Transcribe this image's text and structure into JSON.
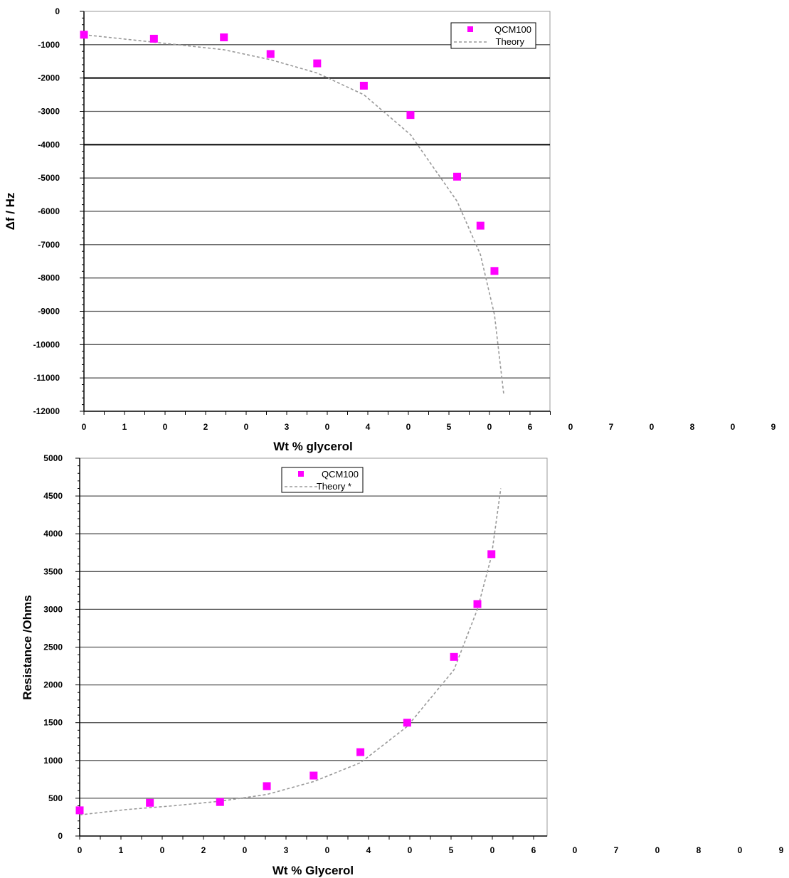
{
  "chart_data": [
    {
      "type": "scatter",
      "xlabel": "Wt % glycerol",
      "ylabel": "Δf / Hz",
      "ylim": [
        -12000,
        0
      ],
      "y_ticks": [
        0,
        -1000,
        -2000,
        -3000,
        -4000,
        -5000,
        -6000,
        -7000,
        -8000,
        -9000,
        -10000,
        -11000,
        -12000
      ],
      "y_tick_labels": [
        "0",
        "-1000",
        "-2000",
        "-3000",
        "-4000",
        "-5000",
        "-6000",
        "-7000",
        "-8000",
        "-9000",
        "-10000",
        "-11000",
        "-12000"
      ],
      "x_tick_labels": [
        "0",
        "1",
        "0",
        "2",
        "0",
        "3",
        "0",
        "4",
        "0",
        "5",
        "0",
        "6",
        "0",
        "7",
        "0",
        "8",
        "0",
        "9"
      ],
      "grid": true,
      "legend_position": "top-right",
      "series": [
        {
          "name": "QCM100",
          "kind": "marker",
          "color": "#ff00ff",
          "x": [
            0,
            15,
            30,
            40,
            50,
            60,
            70,
            80,
            85,
            88
          ],
          "y": [
            -700,
            -820,
            -780,
            -1280,
            -1560,
            -2230,
            -3110,
            -4960,
            -6430,
            -7790
          ]
        },
        {
          "name": "Theory",
          "kind": "dashed-line",
          "color": "#999999",
          "x": [
            0,
            10,
            20,
            30,
            40,
            50,
            60,
            70,
            80,
            85,
            88,
            90
          ],
          "y": [
            -700,
            -850,
            -1000,
            -1150,
            -1450,
            -1850,
            -2500,
            -3700,
            -5700,
            -7300,
            -9100,
            -11500
          ]
        }
      ]
    },
    {
      "type": "scatter",
      "xlabel": "Wt % Glycerol",
      "ylabel": "Resistance /Ohms",
      "ylim": [
        0,
        5000
      ],
      "y_ticks": [
        0,
        500,
        1000,
        1500,
        2000,
        2500,
        3000,
        3500,
        4000,
        4500,
        5000
      ],
      "y_tick_labels": [
        "0",
        "500",
        "1000",
        "1500",
        "2000",
        "2500",
        "3000",
        "3500",
        "4000",
        "4500",
        "5000"
      ],
      "x_tick_labels": [
        "0",
        "1",
        "0",
        "2",
        "0",
        "3",
        "0",
        "4",
        "0",
        "5",
        "0",
        "6",
        "0",
        "7",
        "0",
        "8",
        "0",
        "9"
      ],
      "grid": true,
      "legend_position": "top-center",
      "series": [
        {
          "name": "QCM100",
          "kind": "marker",
          "color": "#ff00ff",
          "x": [
            0,
            15,
            30,
            40,
            50,
            60,
            70,
            80,
            85,
            88
          ],
          "y": [
            340,
            440,
            450,
            660,
            800,
            1110,
            1500,
            2370,
            3070,
            3730
          ]
        },
        {
          "name": "Theory *",
          "kind": "dashed-line",
          "color": "#999999",
          "x": [
            0,
            10,
            20,
            30,
            40,
            50,
            60,
            70,
            80,
            85,
            88,
            90
          ],
          "y": [
            280,
            350,
            400,
            460,
            550,
            720,
            970,
            1450,
            2200,
            3000,
            3700,
            4600
          ]
        }
      ]
    }
  ]
}
